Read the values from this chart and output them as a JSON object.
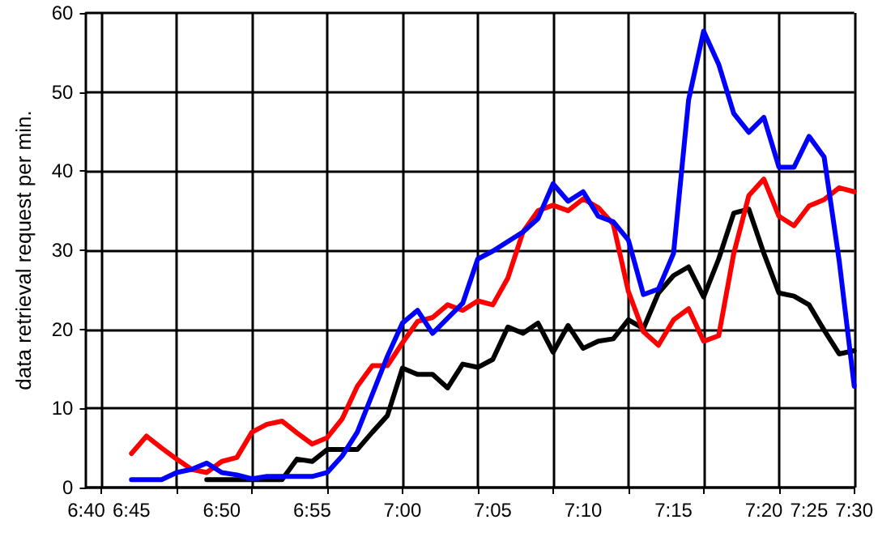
{
  "chart_data": {
    "type": "line",
    "ylabel": "data retrieval request per min.",
    "categories": [
      "6:40",
      null,
      null,
      "6:45",
      null,
      null,
      null,
      null,
      null,
      "6:50",
      null,
      null,
      null,
      null,
      null,
      "6:55",
      null,
      null,
      null,
      null,
      null,
      "7:00",
      null,
      null,
      null,
      null,
      null,
      "7:05",
      null,
      null,
      null,
      null,
      null,
      "7:10",
      null,
      null,
      null,
      null,
      null,
      "7:15",
      null,
      null,
      null,
      null,
      null,
      "7:20",
      null,
      null,
      "7:25",
      null,
      null,
      "7:30"
    ],
    "series": [
      {
        "color": "#000000",
        "values": [
          null,
          null,
          null,
          null,
          null,
          null,
          null,
          null,
          1.0,
          1.0,
          1.0,
          1.0,
          1.0,
          1.0,
          3.6,
          3.3,
          4.8,
          4.8,
          4.8,
          7.0,
          9.1,
          15.1,
          14.3,
          14.3,
          12.6,
          15.6,
          15.2,
          16.2,
          20.3,
          19.5,
          20.8,
          17.1,
          20.5,
          17.6,
          18.5,
          18.8,
          21.2,
          20.1,
          24.6,
          26.8,
          27.9,
          24.1,
          28.9,
          34.7,
          35.2,
          29.6,
          24.6,
          24.2,
          23.1,
          19.9,
          16.9,
          17.3
        ]
      },
      {
        "color": "#ff0000",
        "values": [
          null,
          null,
          null,
          4.3,
          6.5,
          5.0,
          3.6,
          2.3,
          1.9,
          3.3,
          3.8,
          7.0,
          8.0,
          8.4,
          6.9,
          5.5,
          6.3,
          8.7,
          12.8,
          15.4,
          15.4,
          18.3,
          21.0,
          21.5,
          23.1,
          22.4,
          23.6,
          23.1,
          26.5,
          32.3,
          35.0,
          35.7,
          35.0,
          36.5,
          35.4,
          33.3,
          24.8,
          19.7,
          18.0,
          21.2,
          22.6,
          18.5,
          19.2,
          29.6,
          36.9,
          39.0,
          34.3,
          33.1,
          35.6,
          36.4,
          37.9,
          37.4
        ]
      },
      {
        "color": "#0000ff",
        "values": [
          null,
          null,
          null,
          1.0,
          1.0,
          1.0,
          1.9,
          2.3,
          3.1,
          1.9,
          1.6,
          1.1,
          1.4,
          1.4,
          1.4,
          1.4,
          1.9,
          4.0,
          7.0,
          11.8,
          16.6,
          20.8,
          22.4,
          19.5,
          21.4,
          23.3,
          28.9,
          29.9,
          31.1,
          32.3,
          34.0,
          38.4,
          36.2,
          37.4,
          34.3,
          33.6,
          31.3,
          24.4,
          25.1,
          29.6,
          49.0,
          57.7,
          53.5,
          47.3,
          44.9,
          46.8,
          40.5,
          40.5,
          44.4,
          41.8,
          28.7,
          12.8
        ]
      }
    ],
    "ylim": [
      0,
      60
    ],
    "yticks": [
      0,
      10,
      20,
      30,
      40,
      50,
      60
    ],
    "grid": true,
    "marker": "none",
    "line_style": "solid"
  }
}
